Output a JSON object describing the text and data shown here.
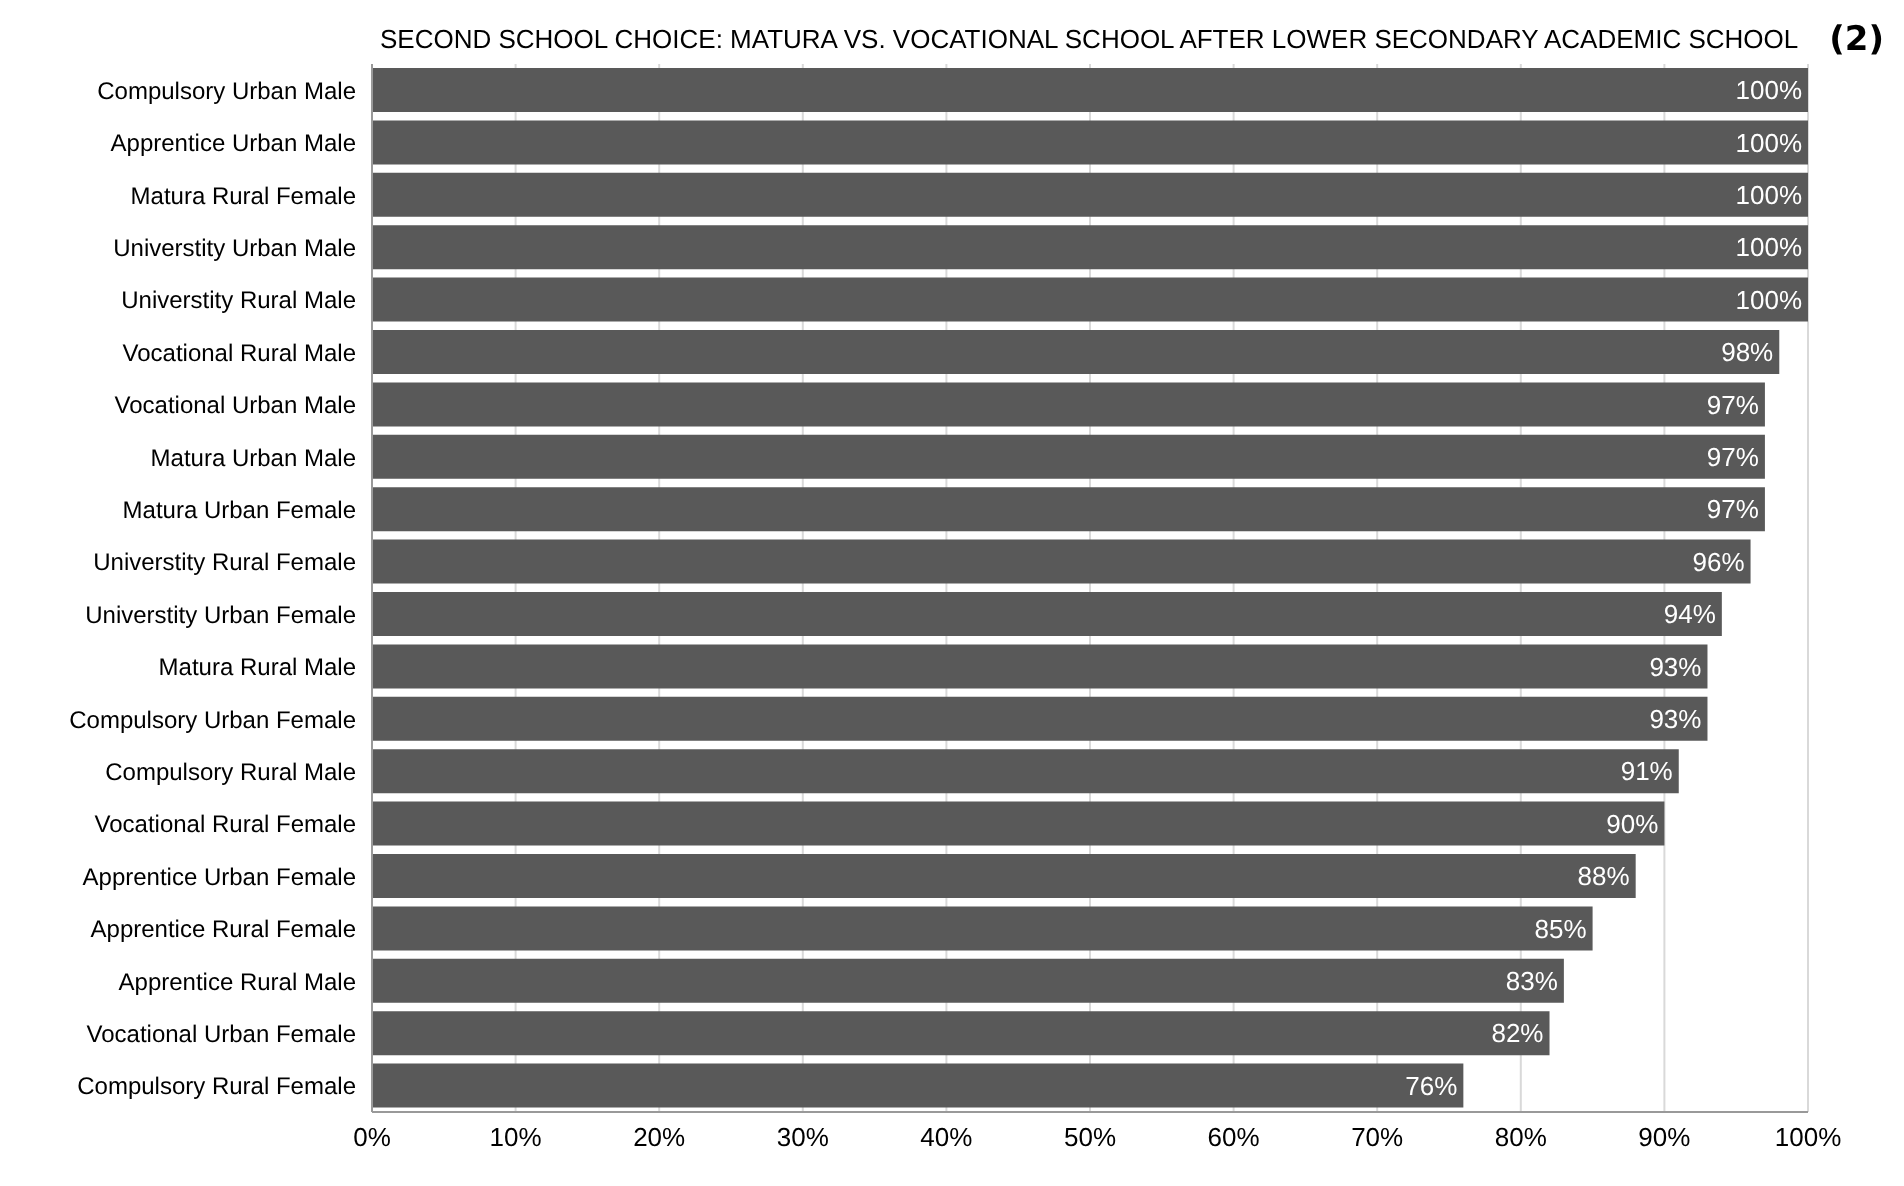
{
  "chart_data": {
    "type": "bar",
    "orientation": "horizontal",
    "title": "SECOND SCHOOL CHOICE: MATURA VS. VOCATIONAL SCHOOL AFTER LOWER SECONDARY ACADEMIC SCHOOL",
    "annotations": [
      "(2)"
    ],
    "categories": [
      "Compulsory Urban Male",
      "Apprentice Urban Male",
      "Matura Rural Female",
      "Universtity Urban Male",
      "Universtity Rural Male",
      "Vocational Rural Male",
      "Vocational Urban Male",
      "Matura Urban Male",
      "Matura Urban Female",
      "Universtity Rural Female",
      "Universtity Urban Female",
      "Matura Rural Male",
      "Compulsory Urban Female",
      "Compulsory Rural Male",
      "Vocational Rural Female",
      "Apprentice Urban Female",
      "Apprentice Rural Female",
      "Apprentice Rural Male",
      "Vocational Urban Female",
      "Compulsory Rural Female"
    ],
    "values": [
      100,
      100,
      100,
      100,
      100,
      98,
      97,
      97,
      97,
      96,
      94,
      93,
      93,
      91,
      90,
      88,
      85,
      83,
      82,
      76
    ],
    "value_labels": [
      "100%",
      "100%",
      "100%",
      "100%",
      "100%",
      "98%",
      "97%",
      "97%",
      "97%",
      "96%",
      "94%",
      "93%",
      "93%",
      "91%",
      "90%",
      "88%",
      "85%",
      "83%",
      "82%",
      "76%"
    ],
    "color": "#595959",
    "xlim": [
      0,
      100
    ],
    "xticks": [
      {
        "value": 0,
        "label": "0%"
      },
      {
        "value": 10,
        "label": "10%"
      },
      {
        "value": 20,
        "label": "20%"
      },
      {
        "value": 30,
        "label": "30%"
      },
      {
        "value": 40,
        "label": "40%"
      },
      {
        "value": 50,
        "label": "50%"
      },
      {
        "value": 60,
        "label": "60%"
      },
      {
        "value": 70,
        "label": "70%"
      },
      {
        "value": 80,
        "label": "80%"
      },
      {
        "value": 90,
        "label": "90%"
      },
      {
        "value": 100,
        "label": "100%"
      }
    ],
    "grid": "x"
  }
}
